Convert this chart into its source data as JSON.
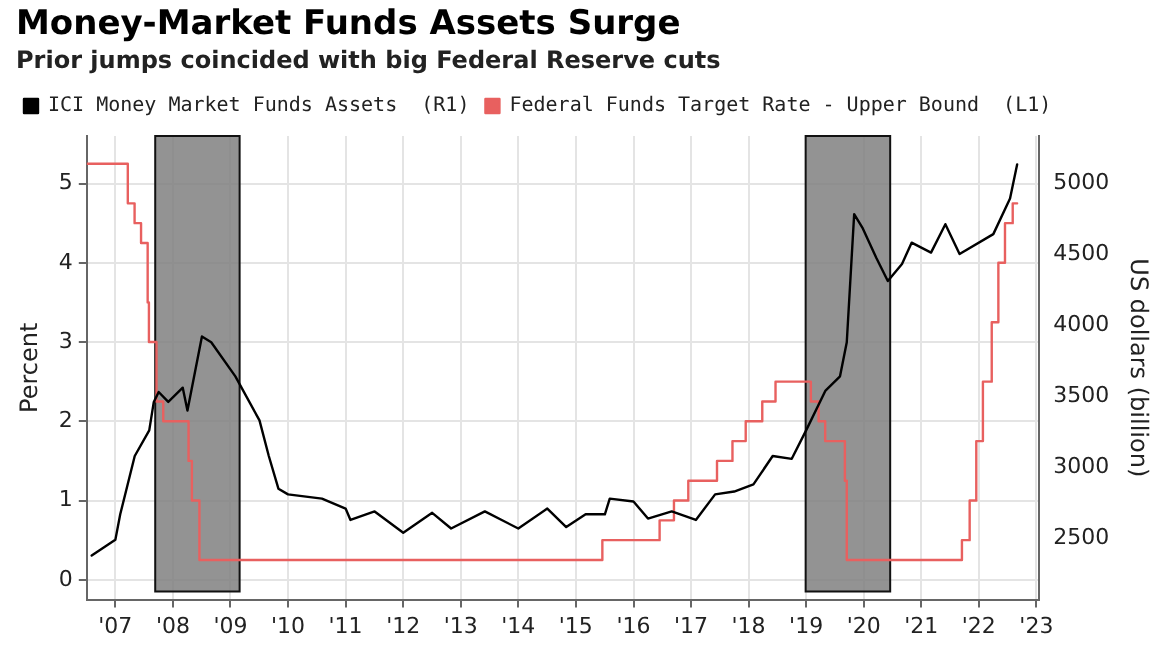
{
  "chart_data": {
    "type": "line",
    "title": "Money-Market Funds Assets Surge",
    "subtitle": "Prior jumps coincided with big Federal Reserve cuts",
    "ylabel": "Percent",
    "y2label": "US dollars (billion)",
    "xlim": [
      "2007-01-01",
      "2023-07-19"
    ],
    "xticks": [
      {
        "value": "2007-07-01",
        "label": "'07"
      },
      {
        "value": "2008-07-01",
        "label": "'08"
      },
      {
        "value": "2009-07-01",
        "label": "'09"
      },
      {
        "value": "2010-07-01",
        "label": "'10"
      },
      {
        "value": "2011-07-01",
        "label": "'11"
      },
      {
        "value": "2012-07-01",
        "label": "'12"
      },
      {
        "value": "2013-07-01",
        "label": "'13"
      },
      {
        "value": "2014-07-01",
        "label": "'14"
      },
      {
        "value": "2015-07-01",
        "label": "'15"
      },
      {
        "value": "2016-07-01",
        "label": "'16"
      },
      {
        "value": "2017-07-01",
        "label": "'17"
      },
      {
        "value": "2018-07-01",
        "label": "'18"
      },
      {
        "value": "2019-07-01",
        "label": "'19"
      },
      {
        "value": "2020-07-01",
        "label": "'20"
      },
      {
        "value": "2021-07-01",
        "label": "'21"
      },
      {
        "value": "2022-07-01",
        "label": "'22"
      },
      {
        "value": "2023-07-01",
        "label": "'23"
      }
    ],
    "ylim": [
      -0.25,
      5.6
    ],
    "yticks": [
      0,
      1,
      2,
      3,
      4,
      5
    ],
    "y2lim": [
      2070,
      5330
    ],
    "y2ticks": [
      2500,
      3000,
      3500,
      4000,
      4500,
      5000
    ],
    "grid": true,
    "legend": "top left",
    "marker": "none",
    "line_style": "solid",
    "series": [
      {
        "name": "ICI Money Market Funds Assets  (R1)",
        "color": "#000000",
        "axis": "y2",
        "x": [
          "2007-02",
          "2007-07",
          "2007-08",
          "2007-11",
          "2008-02",
          "2008-03",
          "2008-04",
          "2008-06",
          "2008-09",
          "2008-10",
          "2009-01",
          "2009-03",
          "2009-08",
          "2010-01",
          "2010-03",
          "2010-05",
          "2010-07",
          "2011-02",
          "2011-07",
          "2011-08",
          "2012-01",
          "2012-07",
          "2013-01",
          "2013-05",
          "2013-12",
          "2014-07",
          "2015-01",
          "2015-05",
          "2015-09",
          "2016-01",
          "2016-02",
          "2016-07",
          "2016-10",
          "2017-03",
          "2017-08",
          "2017-12",
          "2018-04",
          "2018-08",
          "2018-12",
          "2019-04",
          "2019-07",
          "2019-11",
          "2020-02",
          "2020-03-15",
          "2020-05-01",
          "2020-06-25",
          "2020-09-20",
          "2020-12-01",
          "2021-03",
          "2021-05",
          "2021-09",
          "2021-12",
          "2022-03",
          "2022-10",
          "2023-01-15",
          "2023-03-01"
        ],
        "values": [
          2380,
          2490,
          2670,
          3080,
          3260,
          3460,
          3530,
          3460,
          3560,
          3400,
          3920,
          3880,
          3640,
          3330,
          3080,
          2850,
          2810,
          2780,
          2710,
          2630,
          2690,
          2540,
          2680,
          2570,
          2690,
          2570,
          2710,
          2580,
          2670,
          2670,
          2780,
          2760,
          2640,
          2690,
          2630,
          2810,
          2830,
          2880,
          3080,
          3060,
          3260,
          3540,
          3640,
          3880,
          4780,
          4680,
          4470,
          4310,
          4430,
          4580,
          4510,
          4710,
          4500,
          4640,
          4890,
          5130
        ]
      },
      {
        "name": "Federal Funds Target Rate - Upper Bound  (L1)",
        "color": "#e8605f",
        "type": "step",
        "axis": "y",
        "x": [
          "2007-01-01",
          "2007-09-18",
          "2007-10-31",
          "2007-12-11",
          "2008-01-22",
          "2008-01-30",
          "2008-03-18",
          "2008-04-30",
          "2008-10-08",
          "2008-10-29",
          "2008-12-16",
          "2015-12-16",
          "2016-12-14",
          "2017-03-15",
          "2017-06-14",
          "2017-12-13",
          "2018-03-21",
          "2018-06-13",
          "2018-09-26",
          "2018-12-19",
          "2019-07-31",
          "2019-09-18",
          "2019-10-30",
          "2020-03-03",
          "2020-03-15",
          "2022-03-16",
          "2022-05-04",
          "2022-06-15",
          "2022-07-27",
          "2022-09-21",
          "2022-11-02",
          "2022-12-14",
          "2023-02-01",
          "2023-03-01"
        ],
        "values": [
          5.25,
          4.75,
          4.5,
          4.25,
          3.5,
          3.0,
          2.25,
          2.0,
          1.5,
          1.0,
          0.25,
          0.5,
          0.75,
          1.0,
          1.25,
          1.5,
          1.75,
          2.0,
          2.25,
          2.5,
          2.25,
          2.0,
          1.75,
          1.25,
          0.25,
          0.5,
          1.0,
          1.75,
          2.5,
          3.25,
          4.0,
          4.5,
          4.75,
          4.75
        ]
      }
    ],
    "bands": [
      {
        "axis": "x",
        "from": "2008-03-10",
        "to": "2009-08-28",
        "color": "#808080"
      },
      {
        "axis": "x",
        "from": "2019-06-28",
        "to": "2020-12-16",
        "color": "#808080"
      }
    ]
  }
}
